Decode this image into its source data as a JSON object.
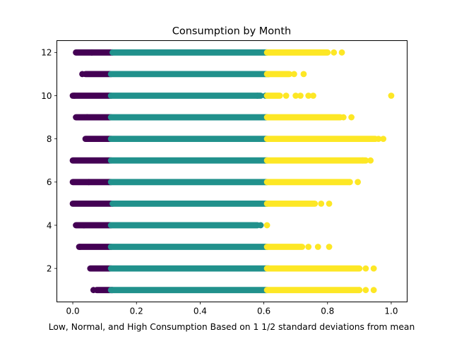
{
  "chart_data": {
    "type": "scatter",
    "title": "Consumption by Month",
    "xlabel": "Low, Normal, and High Consumption Based on 1 1/2 standard deviations from mean",
    "ylabel": "",
    "xlim": [
      -0.05,
      1.05
    ],
    "ylim": [
      0.45,
      12.55
    ],
    "x_ticks": [
      "0.0",
      "0.2",
      "0.4",
      "0.6",
      "0.8",
      "1.0"
    ],
    "y_ticks": [
      "2",
      "4",
      "6",
      "8",
      "10",
      "12"
    ],
    "x_tick_values": [
      0.0,
      0.2,
      0.4,
      0.6,
      0.8,
      1.0
    ],
    "y_tick_values": [
      2,
      4,
      6,
      8,
      10,
      12
    ],
    "grid": false,
    "legend": "none",
    "colors": {
      "low": "#440154",
      "normal": "#21918c",
      "high": "#fde725"
    },
    "series": [
      {
        "category": "low",
        "ranges": [
          {
            "month": 1,
            "from": 0.075,
            "to": 0.125
          },
          {
            "month": 2,
            "from": 0.055,
            "to": 0.12
          },
          {
            "month": 3,
            "from": 0.02,
            "to": 0.12
          },
          {
            "month": 4,
            "from": 0.01,
            "to": 0.12
          },
          {
            "month": 5,
            "from": 0.0,
            "to": 0.125
          },
          {
            "month": 6,
            "from": 0.0,
            "to": 0.12
          },
          {
            "month": 7,
            "from": 0.0,
            "to": 0.12
          },
          {
            "month": 8,
            "from": 0.04,
            "to": 0.12
          },
          {
            "month": 9,
            "from": 0.01,
            "to": 0.12
          },
          {
            "month": 10,
            "from": 0.0,
            "to": 0.12
          },
          {
            "month": 11,
            "from": 0.04,
            "to": 0.12
          },
          {
            "month": 12,
            "from": 0.01,
            "to": 0.125
          }
        ],
        "scatter": [
          [
            0.005,
            10
          ],
          [
            0.022,
            3
          ],
          [
            0.035,
            4
          ],
          [
            0.05,
            6
          ],
          [
            0.06,
            12
          ],
          [
            0.065,
            1
          ],
          [
            0.045,
            9
          ],
          [
            0.03,
            11
          ]
        ]
      },
      {
        "category": "normal",
        "ranges": [
          {
            "month": 1,
            "from": 0.12,
            "to": 0.61
          },
          {
            "month": 2,
            "from": 0.12,
            "to": 0.615
          },
          {
            "month": 3,
            "from": 0.12,
            "to": 0.61
          },
          {
            "month": 4,
            "from": 0.12,
            "to": 0.58
          },
          {
            "month": 5,
            "from": 0.125,
            "to": 0.61
          },
          {
            "month": 6,
            "from": 0.12,
            "to": 0.61
          },
          {
            "month": 7,
            "from": 0.12,
            "to": 0.61
          },
          {
            "month": 8,
            "from": 0.12,
            "to": 0.61
          },
          {
            "month": 9,
            "from": 0.12,
            "to": 0.61
          },
          {
            "month": 10,
            "from": 0.12,
            "to": 0.59
          },
          {
            "month": 11,
            "from": 0.12,
            "to": 0.615
          },
          {
            "month": 12,
            "from": 0.125,
            "to": 0.61
          }
        ],
        "scatter": [
          [
            0.59,
            4
          ],
          [
            0.605,
            10
          ],
          [
            0.58,
            10
          ]
        ]
      },
      {
        "category": "high",
        "ranges": [
          {
            "month": 1,
            "from": 0.61,
            "to": 0.9
          },
          {
            "month": 2,
            "from": 0.61,
            "to": 0.9
          },
          {
            "month": 3,
            "from": 0.61,
            "to": 0.72
          },
          {
            "month": 5,
            "from": 0.61,
            "to": 0.76
          },
          {
            "month": 6,
            "from": 0.61,
            "to": 0.87
          },
          {
            "month": 7,
            "from": 0.61,
            "to": 0.92
          },
          {
            "month": 8,
            "from": 0.61,
            "to": 0.95
          },
          {
            "month": 9,
            "from": 0.61,
            "to": 0.84
          },
          {
            "month": 10,
            "from": 0.61,
            "to": 0.65
          },
          {
            "month": 11,
            "from": 0.61,
            "to": 0.68
          },
          {
            "month": 12,
            "from": 0.61,
            "to": 0.8
          }
        ],
        "scatter": [
          [
            0.945,
            1
          ],
          [
            0.92,
            1
          ],
          [
            0.9,
            1
          ],
          [
            0.945,
            2
          ],
          [
            0.92,
            2
          ],
          [
            0.77,
            3
          ],
          [
            0.805,
            3
          ],
          [
            0.74,
            3
          ],
          [
            0.61,
            4
          ],
          [
            0.805,
            5
          ],
          [
            0.78,
            5
          ],
          [
            0.895,
            6
          ],
          [
            0.87,
            6
          ],
          [
            0.935,
            7
          ],
          [
            0.91,
            7
          ],
          [
            0.975,
            8
          ],
          [
            0.96,
            8
          ],
          [
            0.875,
            9
          ],
          [
            0.85,
            9
          ],
          [
            1.0,
            10
          ],
          [
            0.755,
            10
          ],
          [
            0.74,
            10
          ],
          [
            0.715,
            10
          ],
          [
            0.7,
            10
          ],
          [
            0.67,
            10
          ],
          [
            0.725,
            11
          ],
          [
            0.695,
            11
          ],
          [
            0.845,
            12
          ],
          [
            0.82,
            12
          ]
        ]
      }
    ]
  }
}
